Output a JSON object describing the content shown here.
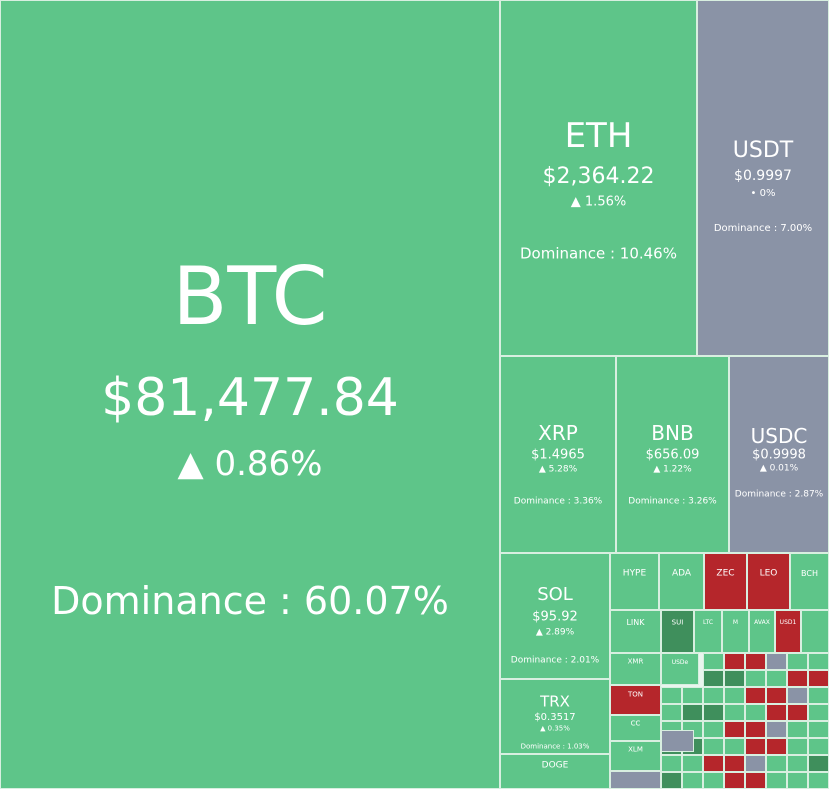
{
  "tiles": [
    {
      "symbol": "BTC",
      "price": "$81,477.84",
      "change": "▲ 0.86%",
      "dominance": "Dominance : 60.07%"
    },
    {
      "symbol": "ETH",
      "price": "$2,364.22",
      "change": "▲ 1.56%",
      "dominance": "Dominance : 10.46%"
    },
    {
      "symbol": "USDT",
      "price": "$0.9997",
      "change": "• 0%",
      "dominance": "Dominance : 7.00%"
    },
    {
      "symbol": "XRP",
      "price": "$1.4965",
      "change": "▲ 5.28%",
      "dominance": "Dominance : 3.36%"
    },
    {
      "symbol": "BNB",
      "price": "$656.09",
      "change": "▲ 1.22%",
      "dominance": "Dominance : 3.26%"
    },
    {
      "symbol": "USDC",
      "price": "$0.9998",
      "change": "▲ 0.01%",
      "dominance": "Dominance : 2.87%"
    },
    {
      "symbol": "SOL",
      "price": "$95.92",
      "change": "▲ 2.89%",
      "dominance": "Dominance : 2.01%"
    },
    {
      "symbol": "TRX",
      "price": "$0.3517",
      "change": "▲ 0.35%",
      "dominance": "Dominance : 1.03%"
    },
    {
      "symbol": "DOGE"
    },
    {
      "symbol": "HYPE"
    },
    {
      "symbol": "ADA"
    },
    {
      "symbol": "ZEC"
    },
    {
      "symbol": "LEO"
    },
    {
      "symbol": "BCH"
    },
    {
      "symbol": "LINK"
    },
    {
      "symbol": "SUI"
    },
    {
      "symbol": "LTC"
    },
    {
      "symbol": "M"
    },
    {
      "symbol": "AVAX"
    },
    {
      "symbol": "USD1"
    },
    {
      "symbol": "XMR"
    },
    {
      "symbol": "USDe"
    },
    {
      "symbol": "TON"
    },
    {
      "symbol": "CC"
    },
    {
      "symbol": "XLM"
    }
  ]
}
